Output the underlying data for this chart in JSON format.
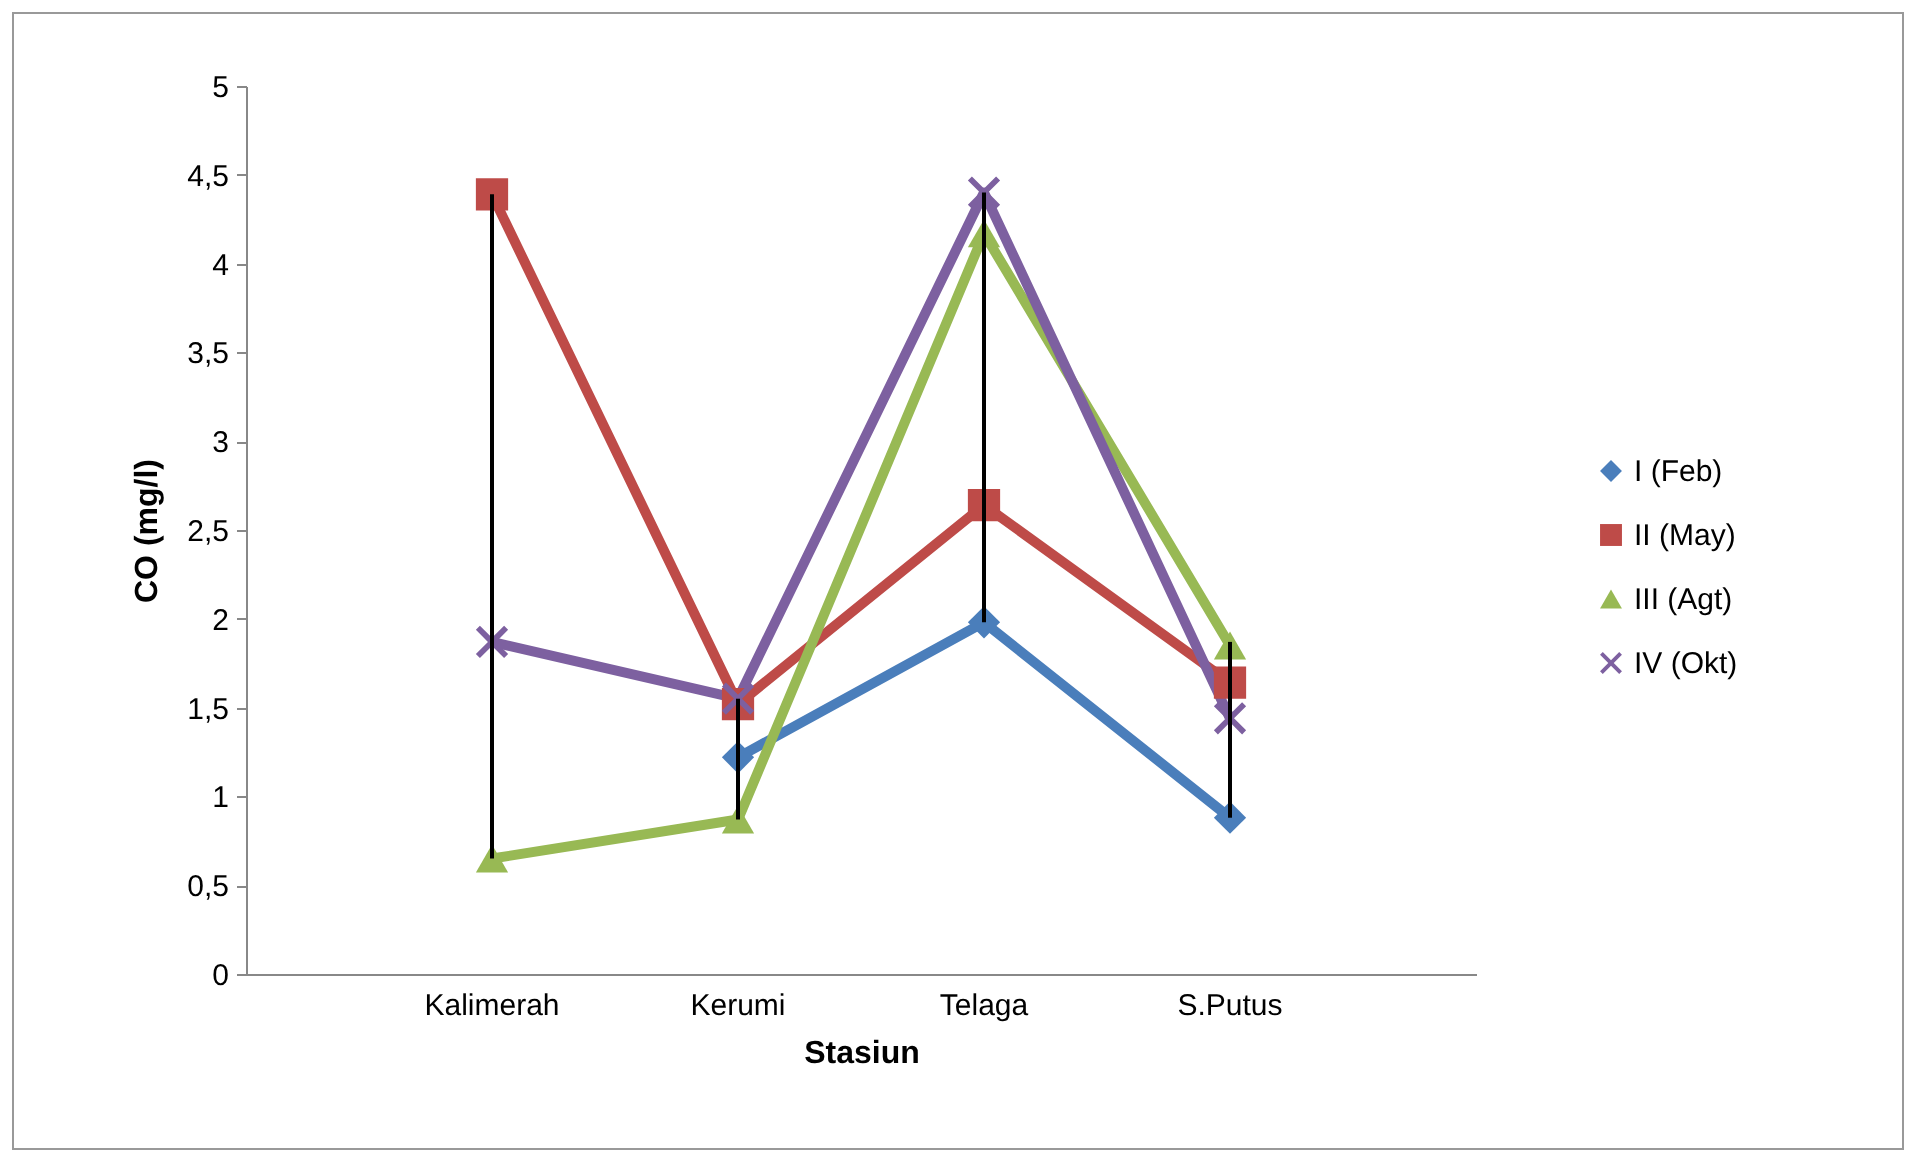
{
  "chart_data": {
    "type": "line",
    "xlabel": "Stasiun",
    "ylabel": "CO (mg/l)",
    "categories": [
      "Kalimerah",
      "Kerumi",
      "Telaga",
      "S.Putus"
    ],
    "series": [
      {
        "name": "I (Feb)",
        "color": "#4a7ebb",
        "marker": "diamond",
        "values": [
          null,
          1.22,
          1.98,
          0.88
        ]
      },
      {
        "name": "II (May)",
        "color": "#be4b48",
        "marker": "square",
        "values": [
          4.39,
          1.52,
          2.64,
          1.64
        ]
      },
      {
        "name": "III (Agt)",
        "color": "#98b954",
        "marker": "triangle",
        "values": [
          0.65,
          0.87,
          4.17,
          1.85
        ]
      },
      {
        "name": "IV (Okt)",
        "color": "#7d60a0",
        "marker": "cross",
        "values": [
          1.87,
          1.55,
          4.4,
          1.44
        ]
      },
      {
        "type": "bar",
        "color": "#000000",
        "base": [
          0.65,
          0.87,
          1.98,
          0.88
        ],
        "values": [
          3.74,
          0.68,
          2.42,
          0.99
        ]
      }
    ],
    "ylim": [
      0,
      5
    ],
    "yticks": [
      0,
      {
        "value": 0.5,
        "label": "0,5"
      },
      1,
      {
        "value": 1.5,
        "label": "1,5"
      },
      2,
      {
        "value": 2.5,
        "label": "2,5"
      },
      3,
      {
        "value": 3.5,
        "label": "3,5"
      },
      4,
      {
        "value": 4.5,
        "label": "4,5"
      },
      5
    ],
    "grid": false,
    "legend": "right"
  }
}
